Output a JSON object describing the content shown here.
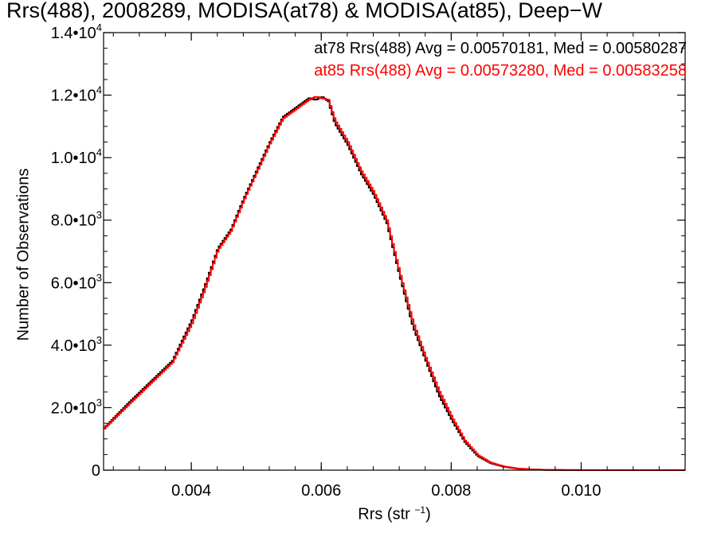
{
  "chart_data": {
    "type": "line",
    "title": "Rrs(488), 2008289, MODISA(at78) & MODISA(at85), Deep−W",
    "xlabel": "Rrs (str",
    "xlabel_sup": "−1",
    "xlabel_suffix": ")",
    "ylabel": "Number of Observations",
    "xlim": [
      0.00265,
      0.0116
    ],
    "ylim": [
      0,
      14000
    ],
    "x_ticks": [
      {
        "value": 0.004,
        "label": "0.004"
      },
      {
        "value": 0.006,
        "label": "0.006"
      },
      {
        "value": 0.008,
        "label": "0.008"
      },
      {
        "value": 0.01,
        "label": "0.010"
      }
    ],
    "y_ticks": [
      {
        "value": 0,
        "label": "0"
      },
      {
        "value": 2000,
        "label": "2.0•10",
        "sup": "3"
      },
      {
        "value": 4000,
        "label": "4.0•10",
        "sup": "3"
      },
      {
        "value": 6000,
        "label": "6.0•10",
        "sup": "3"
      },
      {
        "value": 8000,
        "label": "8.0•10",
        "sup": "3"
      },
      {
        "value": 10000,
        "label": "1.0•10",
        "sup": "4"
      },
      {
        "value": 12000,
        "label": "1.2•10",
        "sup": "4"
      },
      {
        "value": 14000,
        "label": "1.4•10",
        "sup": "4"
      }
    ],
    "series": [
      {
        "name": "at78",
        "legend": "at78 Rrs(488) Avg = 0.00570181, Med = 0.00580287",
        "color": "#000000",
        "x": [
          0.00265,
          0.003,
          0.0034,
          0.0037,
          0.004,
          0.0042,
          0.0044,
          0.0046,
          0.0048,
          0.005,
          0.0052,
          0.0054,
          0.0056,
          0.0058,
          0.0059,
          0.006,
          0.0061,
          0.0062,
          0.0064,
          0.0066,
          0.0068,
          0.007,
          0.0072,
          0.0074,
          0.0076,
          0.0078,
          0.008,
          0.0082,
          0.0084,
          0.0086,
          0.0088,
          0.009,
          0.0092,
          0.0094,
          0.0096,
          0.0098,
          0.01,
          0.0105,
          0.0116
        ],
        "y": [
          1350,
          2100,
          2900,
          3500,
          4800,
          5900,
          7100,
          7700,
          8700,
          9600,
          10500,
          11300,
          11600,
          11900,
          11850,
          11950,
          11800,
          11100,
          10400,
          9500,
          8800,
          7900,
          6200,
          4600,
          3500,
          2400,
          1600,
          900,
          450,
          220,
          110,
          50,
          25,
          10,
          5,
          2,
          1,
          0,
          0
        ]
      },
      {
        "name": "at85",
        "legend": "at85 Rrs(488) Avg = 0.00573280, Med = 0.00583258",
        "color": "#ff0000",
        "x": [
          0.00265,
          0.003,
          0.0034,
          0.0037,
          0.004,
          0.0042,
          0.0044,
          0.0046,
          0.0048,
          0.005,
          0.0052,
          0.0054,
          0.0056,
          0.0058,
          0.0059,
          0.006,
          0.0061,
          0.0062,
          0.0064,
          0.0066,
          0.0068,
          0.007,
          0.0072,
          0.0074,
          0.0076,
          0.0078,
          0.008,
          0.0082,
          0.0084,
          0.0086,
          0.0088,
          0.009,
          0.0092,
          0.0094,
          0.0096,
          0.0098,
          0.01,
          0.0105,
          0.0116
        ],
        "y": [
          1330,
          2050,
          2850,
          3450,
          4700,
          5800,
          7050,
          7650,
          8650,
          9550,
          10450,
          11250,
          11550,
          11850,
          11950,
          11900,
          11850,
          11200,
          10500,
          9600,
          8900,
          8000,
          6300,
          4750,
          3600,
          2550,
          1700,
          950,
          480,
          240,
          120,
          55,
          28,
          12,
          6,
          2,
          1,
          0,
          0
        ]
      }
    ]
  }
}
